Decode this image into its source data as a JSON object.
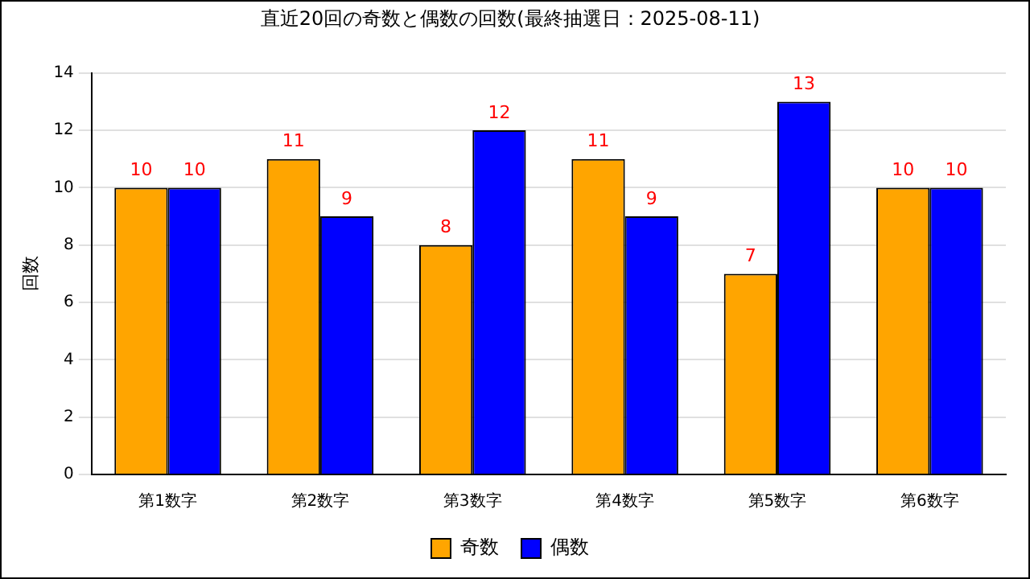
{
  "chart_data": {
    "type": "bar",
    "title": "直近20回の奇数と偶数の回数(最終抽選日：2025-08-11)",
    "ylabel": "回数",
    "categories": [
      "第1数字",
      "第2数字",
      "第3数字",
      "第4数字",
      "第5数字",
      "第6数字"
    ],
    "series": [
      {
        "name": "奇数",
        "color": "#ffa500",
        "values": [
          10,
          11,
          8,
          11,
          7,
          10
        ]
      },
      {
        "name": "偶数",
        "color": "#0000ff",
        "values": [
          10,
          9,
          12,
          9,
          13,
          10
        ]
      }
    ],
    "ylim": [
      0,
      14
    ],
    "yticks": [
      0,
      2,
      4,
      6,
      8,
      10,
      12,
      14
    ],
    "grid": "y",
    "legend": "bottom",
    "data_labels": true
  }
}
